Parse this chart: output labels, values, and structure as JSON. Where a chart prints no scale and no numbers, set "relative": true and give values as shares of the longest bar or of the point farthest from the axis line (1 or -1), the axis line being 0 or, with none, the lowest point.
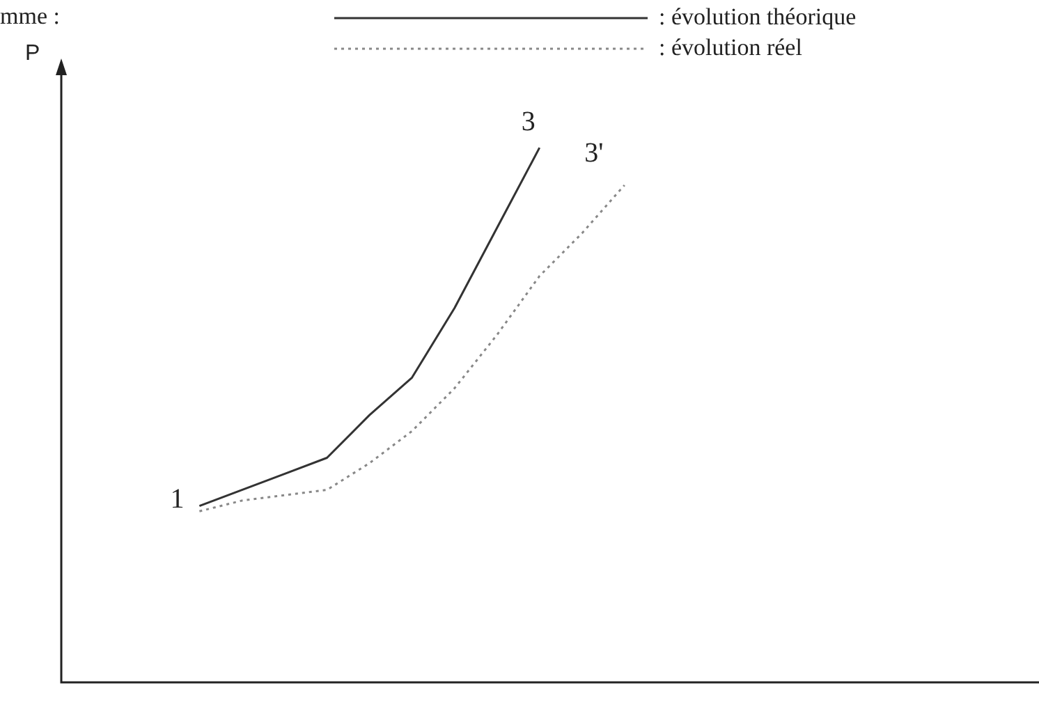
{
  "chart_data": {
    "type": "line",
    "relative": true,
    "legend": "top right",
    "categories": [
      null,
      null,
      null,
      null,
      null,
      null,
      null,
      null,
      null,
      null,
      null
    ],
    "series": [
      {
        "name": ": évolution théorique",
        "color": "#333333",
        "line_style": "solid",
        "values": [
          0.33,
          0.36,
          0.39,
          0.42,
          0.5,
          0.57,
          0.7,
          0.85,
          1,
          null,
          null
        ]
      },
      {
        "name": ": évolution réel",
        "color": "#888888",
        "line_style": "dotted",
        "values": [
          0.32,
          0.34,
          0.35,
          0.36,
          0.41,
          0.47,
          0.55,
          0.65,
          0.76,
          0.84,
          0.93
        ]
      }
    ],
    "annotations": [
      "mme :",
      "1",
      "3",
      "3'",
      "P"
    ]
  }
}
